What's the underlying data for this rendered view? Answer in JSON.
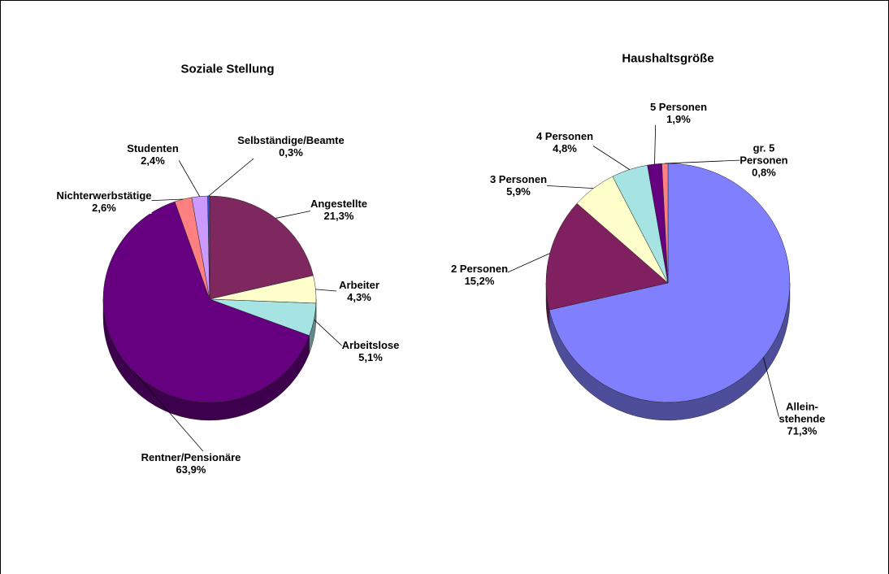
{
  "chart_data": [
    {
      "type": "pie",
      "title": "Soziale Stellung",
      "categories": [
        "Angestellte",
        "Arbeiter",
        "Arbeitslose",
        "Rentner/Pensionäre",
        "Nichterwerbstätige",
        "Studenten",
        "Selbständige/Beamte"
      ],
      "values": [
        21.3,
        4.3,
        5.1,
        63.9,
        2.6,
        2.4,
        0.3
      ],
      "value_labels": [
        "21,3%",
        "4,3%",
        "5,1%",
        "63,9%",
        "2,6%",
        "2,4%",
        "0,3%"
      ],
      "colors": [
        "#7f2860",
        "#ffffcc",
        "#a6e4e4",
        "#660080",
        "#ff8080",
        "#cc99ff",
        "#3355cc"
      ]
    },
    {
      "type": "pie",
      "title": "Haushaltsgröße",
      "categories": [
        "Allein-\nstehende",
        "2 Personen",
        "3 Personen",
        "4 Personen",
        "5 Personen",
        "gr. 5\nPersonen"
      ],
      "values": [
        71.3,
        15.2,
        5.9,
        4.8,
        1.9,
        0.8
      ],
      "value_labels": [
        "71,3%",
        "15,2%",
        "5,9%",
        "4,8%",
        "1,9%",
        "0,8%"
      ],
      "colors": [
        "#8080ff",
        "#802060",
        "#ffffcc",
        "#a6e4e4",
        "#660080",
        "#ff8080"
      ]
    }
  ]
}
